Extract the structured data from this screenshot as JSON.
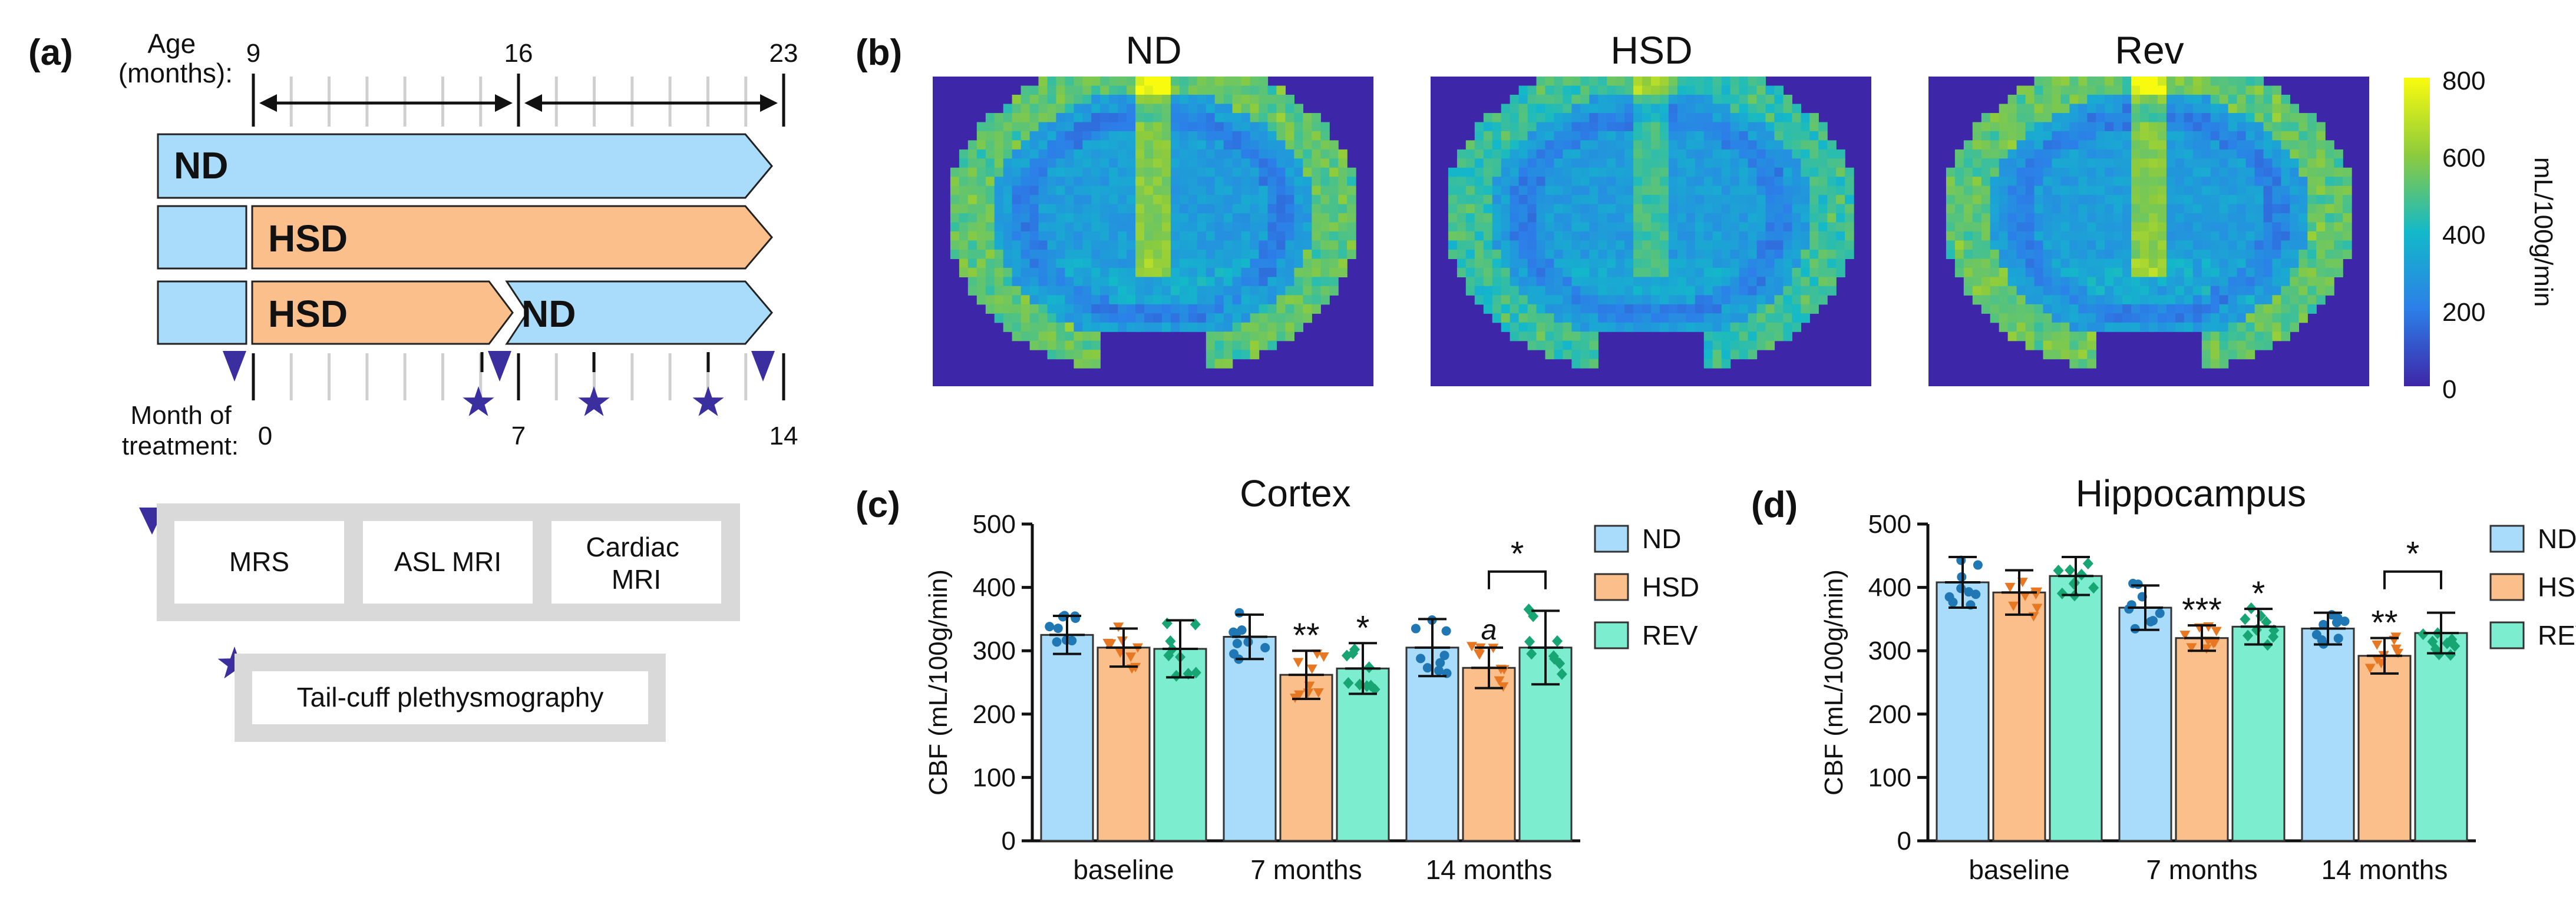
{
  "colors": {
    "nd": "#a9dcfa",
    "hsd": "#fbbf8c",
    "rev": "#7dedd0",
    "nd_dot": "#1f77b4",
    "hsd_dot": "#e87722",
    "rev_dot": "#17a673",
    "symbol": "#3b2fa0",
    "box_border": "#d9d9d9"
  },
  "panel_a": {
    "label": "(a)",
    "age_label": "Age\n(months):",
    "age_ticks": [
      "9",
      "16",
      "23"
    ],
    "bars": [
      {
        "segments": [
          "ND"
        ]
      },
      {
        "segments": [
          "",
          "HSD"
        ]
      },
      {
        "segments": [
          "",
          "HSD",
          "ND"
        ]
      }
    ],
    "month_label": "Month of\ntreatment:",
    "month_ticks": [
      "0",
      "7",
      "14"
    ],
    "legend_boxes": [
      "MRS",
      "ASL MRI",
      "Cardiac\nMRI"
    ],
    "legend_star_box": "Tail-cuff plethysmography"
  },
  "panel_b": {
    "label": "(b)",
    "titles": [
      "ND",
      "HSD",
      "Rev"
    ],
    "colorbar_label": "mL/100g/min",
    "colorbar_ticks": [
      "800",
      "600",
      "400",
      "200",
      "0"
    ]
  },
  "chart_data": [
    {
      "type": "bar",
      "panel": "(c)",
      "title": "Cortex",
      "ylabel": "CBF (mL/100g/min)",
      "xlabel": "",
      "ylim": [
        0,
        500
      ],
      "yticks": [
        "0",
        "100",
        "200",
        "300",
        "400",
        "500"
      ],
      "categories": [
        "baseline",
        "7 months",
        "14 months"
      ],
      "series": [
        {
          "name": "ND",
          "values": [
            325,
            322,
            305
          ],
          "sd": [
            30,
            35,
            45
          ]
        },
        {
          "name": "HSD",
          "values": [
            305,
            262,
            273
          ],
          "sd": [
            30,
            38,
            32
          ]
        },
        {
          "name": "REV",
          "values": [
            303,
            272,
            305
          ],
          "sd": [
            45,
            40,
            58
          ]
        }
      ],
      "annotations": [
        {
          "text": "**",
          "category": 1,
          "series": 1
        },
        {
          "text": "*",
          "category": 1,
          "series": 2
        },
        {
          "text": "a",
          "category": 2,
          "series": 1,
          "italic": true
        },
        {
          "text": "*",
          "category": 2,
          "bracket": [
            1,
            2
          ]
        }
      ],
      "legend": [
        "ND",
        "HSD",
        "REV"
      ]
    },
    {
      "type": "bar",
      "panel": "(d)",
      "title": "Hippocampus",
      "ylabel": "CBF (mL/100g/min)",
      "xlabel": "",
      "ylim": [
        0,
        500
      ],
      "yticks": [
        "0",
        "100",
        "200",
        "300",
        "400",
        "500"
      ],
      "categories": [
        "baseline",
        "7 months",
        "14 months"
      ],
      "series": [
        {
          "name": "ND",
          "values": [
            408,
            368,
            335
          ],
          "sd": [
            40,
            35,
            25
          ]
        },
        {
          "name": "HSD",
          "values": [
            392,
            320,
            292
          ],
          "sd": [
            35,
            20,
            28
          ]
        },
        {
          "name": "REV",
          "values": [
            418,
            338,
            328
          ],
          "sd": [
            30,
            28,
            32
          ]
        }
      ],
      "annotations": [
        {
          "text": "***",
          "category": 1,
          "series": 1
        },
        {
          "text": "*",
          "category": 1,
          "series": 2
        },
        {
          "text": "**",
          "category": 2,
          "series": 1
        },
        {
          "text": "*",
          "category": 2,
          "bracket": [
            1,
            2
          ]
        }
      ],
      "legend": [
        "ND",
        "HSD",
        "REV"
      ]
    }
  ]
}
